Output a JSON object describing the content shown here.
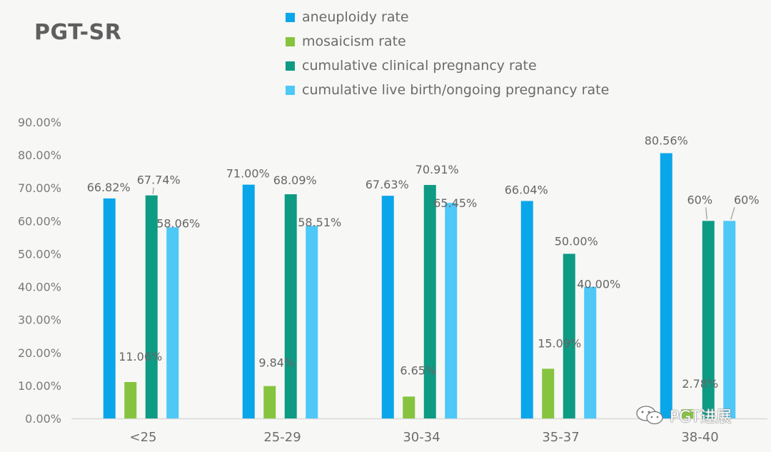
{
  "chart_data": {
    "type": "bar",
    "title": "PGT-SR",
    "xlabel": "",
    "ylabel": "",
    "ylim": [
      0,
      90
    ],
    "yticks": [
      "0.00%",
      "10.00%",
      "20.00%",
      "30.00%",
      "40.00%",
      "50.00%",
      "60.00%",
      "70.00%",
      "80.00%",
      "90.00%"
    ],
    "grid": false,
    "legend_position": "top",
    "categories": [
      "<25",
      "25-29",
      "30-34",
      "35-37",
      "38-40"
    ],
    "series": [
      {
        "name": "aneuploidy rate",
        "color": "#0aa6ea",
        "values": [
          66.82,
          71.0,
          67.63,
          66.04,
          80.56
        ],
        "labels": [
          "66.82%",
          "71.00%",
          "67.63%",
          "66.04%",
          "80.56%"
        ]
      },
      {
        "name": "mosaicism rate",
        "color": "#86c440",
        "values": [
          11.06,
          9.84,
          6.65,
          15.09,
          2.78
        ],
        "labels": [
          "11.06%",
          "9.84%",
          "6.65%",
          "15.09%",
          "2.78%"
        ]
      },
      {
        "name": "cumulative clinical pregnancy rate",
        "color": "#0d9b84",
        "values": [
          67.74,
          68.09,
          70.91,
          50.0,
          60
        ],
        "labels": [
          "67.74%",
          "68.09%",
          "70.91%",
          "50.00%",
          "60%"
        ]
      },
      {
        "name": "cumulative live birth/ongoing pregnancy rate",
        "color": "#4dc8f7",
        "values": [
          58.06,
          58.51,
          65.45,
          40.0,
          60
        ],
        "labels": [
          "58.06%",
          "58.51%",
          "65.45%",
          "40.00%",
          "60%"
        ]
      }
    ]
  },
  "watermark": {
    "icon": "wechat-icon",
    "text": "PGT进展"
  }
}
